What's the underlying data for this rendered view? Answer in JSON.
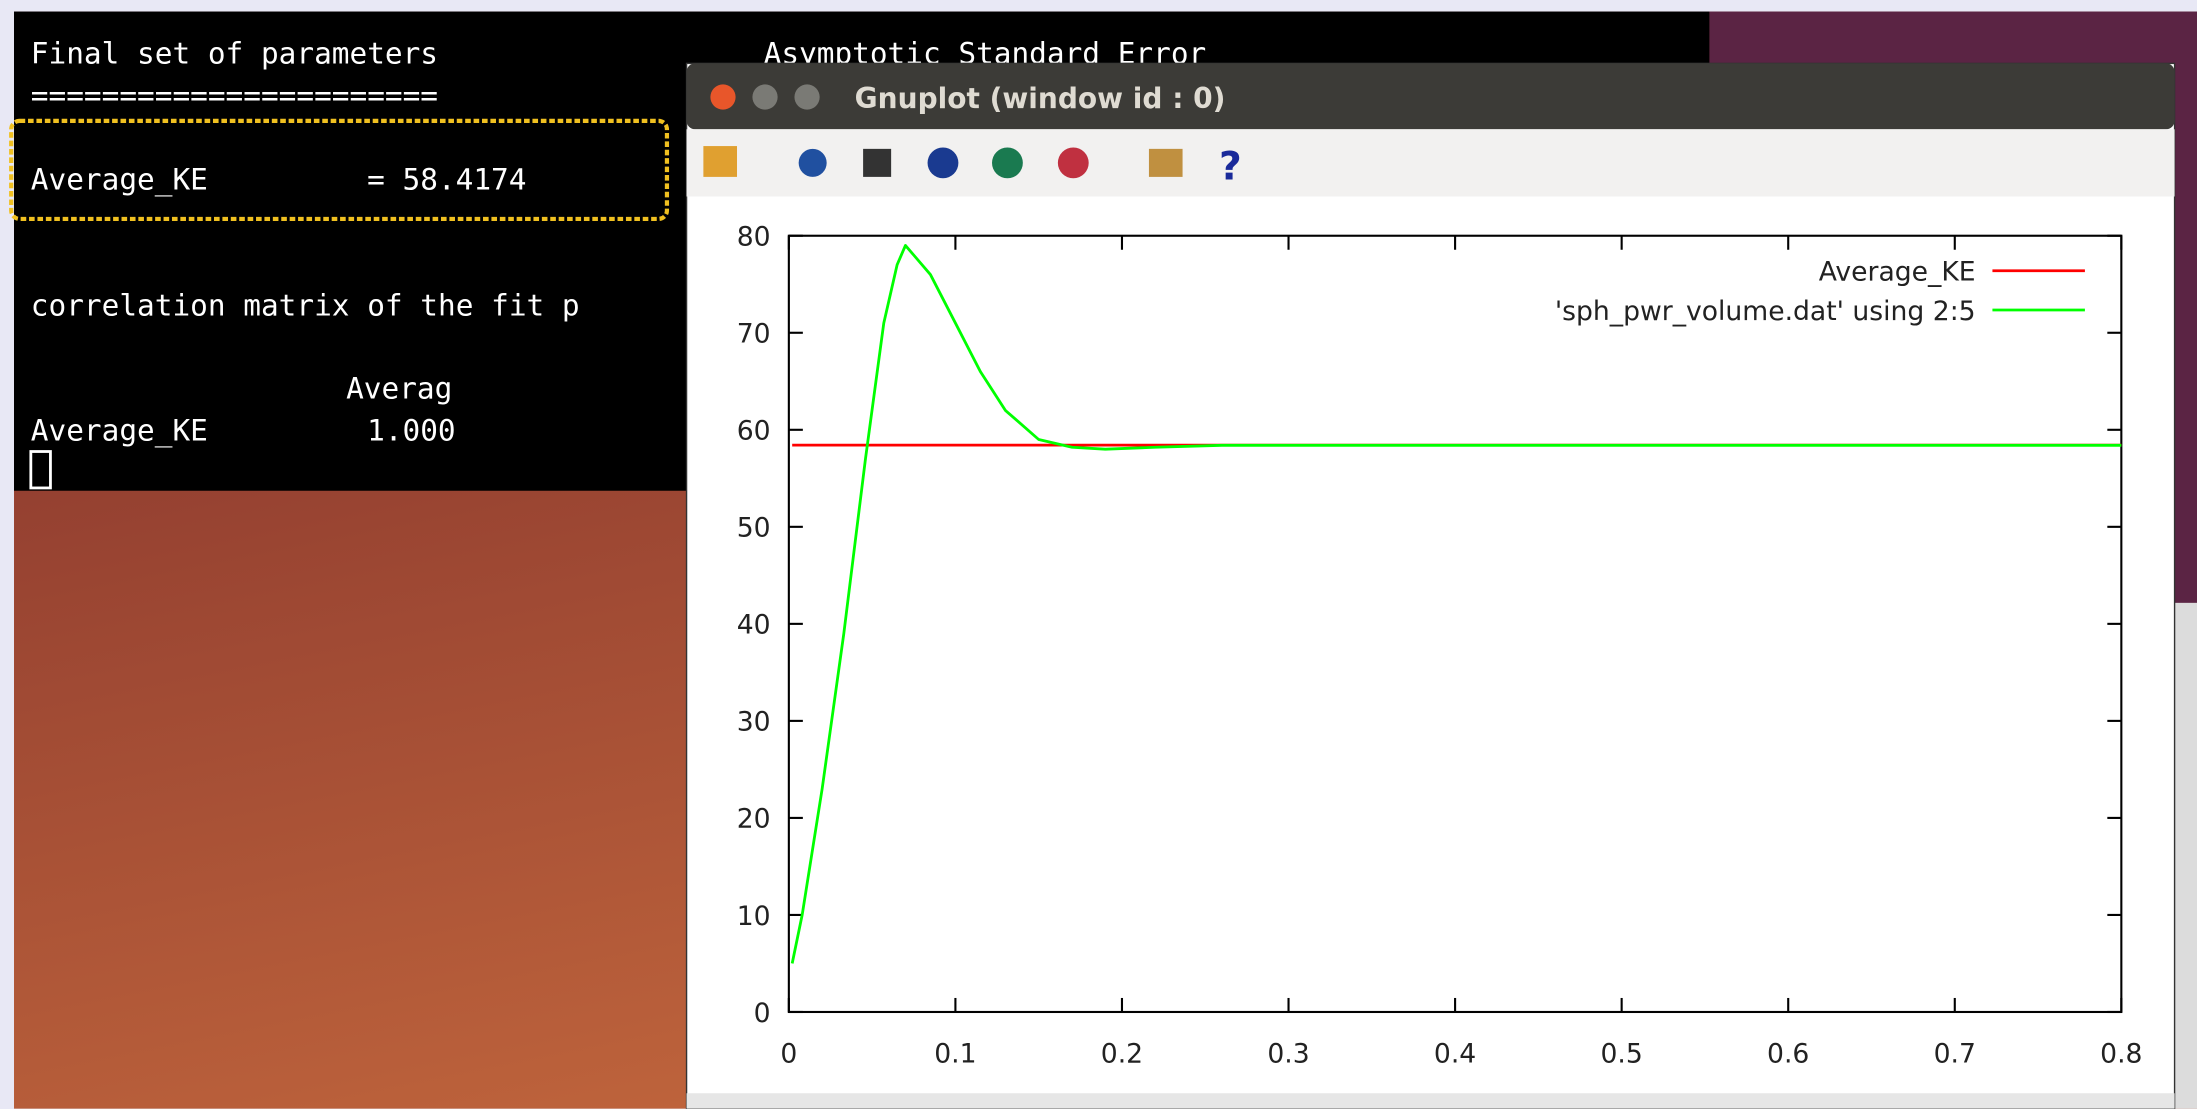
{
  "terminal": {
    "line1": "Final set of parameters",
    "line1_right": "Asymptotic Standard Error",
    "rule": "=======================",
    "param_name": "Average_KE",
    "param_value": "= 58.4174",
    "corr_heading": "correlation matrix of the fit p",
    "corr_col": "Averag",
    "corr_row_name": "Average_KE",
    "corr_row_value": "1.000"
  },
  "window": {
    "title": "Gnuplot (window id : 0)"
  },
  "chart_data": {
    "type": "line",
    "xlim": [
      0,
      0.8
    ],
    "ylim": [
      0,
      80
    ],
    "xticks": [
      0,
      0.1,
      0.2,
      0.3,
      0.4,
      0.5,
      0.6,
      0.7,
      0.8
    ],
    "yticks": [
      0,
      10,
      20,
      30,
      40,
      50,
      60,
      70,
      80
    ],
    "legend": "upper right",
    "series": [
      {
        "name": "Average_KE",
        "color": "#ff0000",
        "x": [
          0.002,
          0.8
        ],
        "values": [
          58.4174,
          58.4174
        ]
      },
      {
        "name": "'sph_pwr_volume.dat' using 2:5",
        "color": "#00ff00",
        "x": [
          0.002,
          0.008,
          0.02,
          0.033,
          0.046,
          0.057,
          0.065,
          0.07,
          0.075,
          0.085,
          0.1,
          0.115,
          0.13,
          0.15,
          0.17,
          0.19,
          0.22,
          0.26,
          0.8
        ],
        "values": [
          5,
          10,
          23,
          39,
          57,
          71,
          77,
          79,
          78,
          76,
          71,
          66,
          62,
          59,
          58.2,
          58,
          58.2,
          58.4,
          58.4
        ]
      }
    ]
  }
}
